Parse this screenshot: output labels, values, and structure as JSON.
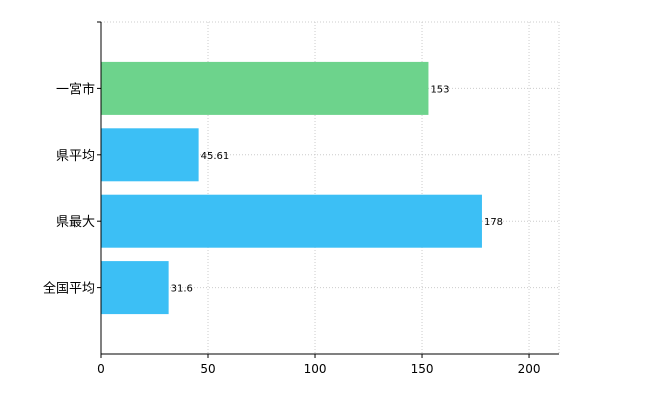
{
  "chart_data": {
    "type": "bar",
    "orientation": "horizontal",
    "title": "",
    "xlabel": "",
    "ylabel": "",
    "categories": [
      "一宮市",
      "県平均",
      "県最大",
      "全国平均"
    ],
    "values": [
      153,
      45.61,
      178,
      31.6
    ],
    "data_labels": [
      "153",
      "45.61",
      "178",
      "31.6"
    ],
    "bar_colors": [
      "#6dd38c",
      "#3cbff5",
      "#3cbff5",
      "#3cbff5"
    ],
    "xlim": [
      0,
      214
    ],
    "x_ticks": [
      0,
      50,
      100,
      150,
      200
    ],
    "x_tick_labels": [
      "0",
      "50",
      "100",
      "150",
      "200"
    ],
    "grid": true,
    "legend": "none"
  }
}
